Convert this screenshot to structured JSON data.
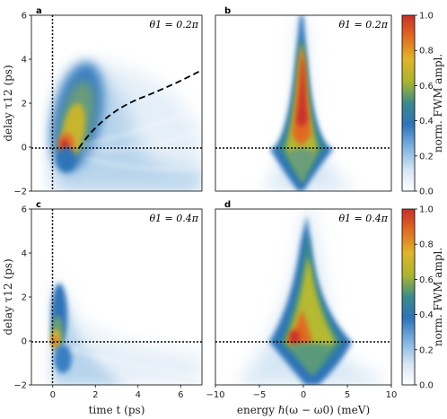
{
  "chart_data": [
    {
      "type": "heatmap",
      "panel_label": "a",
      "annotation": "θ1 = 0.2π",
      "xlabel": "",
      "ylabel": "delay τ12 (ps)",
      "xlim": [
        -1,
        7
      ],
      "ylim": [
        -2,
        6
      ],
      "xticks": [],
      "yticks": [
        "−2",
        "0",
        "2",
        "4",
        "6"
      ],
      "guides": [
        "vertical dotted line at t = 0",
        "horizontal dotted line at τ12 = 0",
        "dashed curve from t = 1 ps, τ12 = 0 to t = 7 ps, τ12 ≈ 3.5 ps"
      ]
    },
    {
      "type": "heatmap",
      "panel_label": "b",
      "annotation": "θ1 = 0.2π",
      "xlabel": "",
      "ylabel": "",
      "xlim": [
        -10,
        10
      ],
      "ylim": [
        -2,
        6
      ],
      "xticks": [],
      "yticks": [],
      "guides": [
        "horizontal dotted line at τ12 = 0"
      ]
    },
    {
      "type": "heatmap",
      "panel_label": "c",
      "annotation": "θ1 = 0.4π",
      "xlabel": "time t (ps)",
      "ylabel": "delay τ12 (ps)",
      "xlim": [
        -1,
        7
      ],
      "ylim": [
        -2,
        6
      ],
      "xticks": [
        "0",
        "2",
        "4",
        "6"
      ],
      "yticks": [
        "−2",
        "0",
        "2",
        "4",
        "6"
      ],
      "guides": [
        "vertical dotted line at t = 0",
        "horizontal dotted line at τ12 = 0"
      ]
    },
    {
      "type": "heatmap",
      "panel_label": "d",
      "annotation": "θ1 = 0.4π",
      "xlabel": "energy ℏ(ω − ω0) (meV)",
      "ylabel": "",
      "xlim": [
        -10,
        10
      ],
      "ylim": [
        -2,
        6
      ],
      "xticks": [
        "−10",
        "−5",
        "0",
        "5",
        "10"
      ],
      "yticks": [],
      "guides": [
        "horizontal dotted line at τ12 = 0"
      ]
    }
  ],
  "colorbars": [
    {
      "label": "norm. FWM ampl.",
      "range": [
        0,
        1
      ],
      "ticks": [
        "0.0",
        "0.2",
        "0.4",
        "0.6",
        "0.8",
        "1.0"
      ]
    },
    {
      "label": "norm. FWM ampl.",
      "range": [
        0,
        1
      ],
      "ticks": [
        "0.0",
        "0.2",
        "0.4",
        "0.6",
        "0.8",
        "1.0"
      ]
    }
  ],
  "colormap": [
    "#ffffff",
    "#d6e6f4",
    "#7fb2df",
    "#2f73b8",
    "#3a8a8c",
    "#a9b431",
    "#e0b52a",
    "#e06a22",
    "#c6302a"
  ]
}
